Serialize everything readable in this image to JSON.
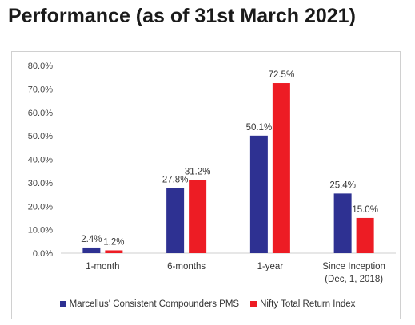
{
  "title": "Performance (as of 31st March 2021)",
  "chart_data": {
    "type": "bar",
    "categories": [
      [
        "1-month"
      ],
      [
        "6-months"
      ],
      [
        "1-year"
      ],
      [
        "Since Inception",
        "(Dec, 1, 2018)"
      ]
    ],
    "series": [
      {
        "name": "Marcellus' Consistent Compounders PMS",
        "color": "#2e3192",
        "values": [
          2.4,
          27.8,
          50.1,
          25.4
        ],
        "labels": [
          "2.4%",
          "27.8%",
          "50.1%",
          "25.4%"
        ]
      },
      {
        "name": "Nifty Total Return Index",
        "color": "#ed1c24",
        "values": [
          1.2,
          31.2,
          72.5,
          15.0
        ],
        "labels": [
          "1.2%",
          "31.2%",
          "72.5%",
          "15.0%"
        ]
      }
    ],
    "y_ticks": [
      "0.0%",
      "10.0%",
      "20.0%",
      "30.0%",
      "40.0%",
      "50.0%",
      "60.0%",
      "70.0%",
      "80.0%"
    ],
    "ylim": [
      0,
      80
    ],
    "grid": false,
    "legend": "bottom"
  }
}
